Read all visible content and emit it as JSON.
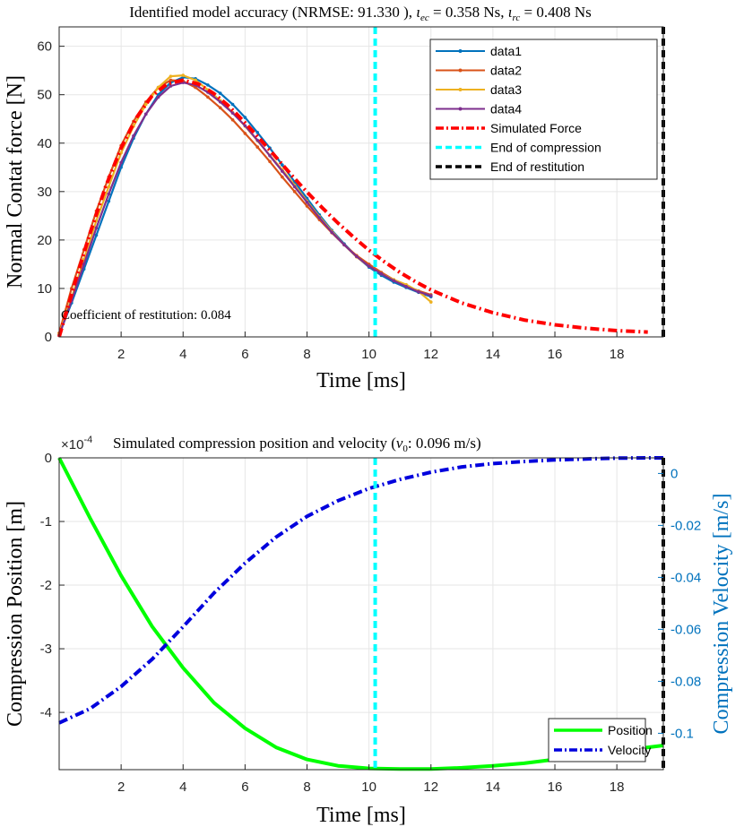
{
  "chart_data": [
    {
      "type": "line",
      "title": "Identified model accuracy (NRMSE: 91.330 ), ιec = 0.358 Ns, ιrc = 0.408 Ns",
      "title_parts": {
        "prefix": "Identified model accuracy (NRMSE: 91.330 ), ",
        "iota": "ι",
        "sub_ec": "ec",
        "eq_ec": " = 0.358 Ns, ",
        "sub_rc": "rc",
        "eq_rc": " = 0.408 Ns"
      },
      "xlabel": "Time [ms]",
      "ylabel": "Normal Contat force [N]",
      "xlim": [
        0,
        19.5
      ],
      "ylim": [
        0,
        64
      ],
      "xticks": [
        2,
        4,
        6,
        8,
        10,
        12,
        14,
        16,
        18
      ],
      "yticks": [
        0,
        10,
        20,
        30,
        40,
        50,
        60
      ],
      "grid": true,
      "legend_position": "top-right",
      "annotation": "Coefficient of restitution: 0.084",
      "series": [
        {
          "name": "data1",
          "color": "#0072BD",
          "style": "solid-dots",
          "x": [
            0,
            0.4,
            0.8,
            1.2,
            1.6,
            2.0,
            2.4,
            2.8,
            3.2,
            3.6,
            4.0,
            4.4,
            4.8,
            5.2,
            5.6,
            6.0,
            6.4,
            6.8,
            7.2,
            7.6,
            8.0,
            8.4,
            8.8,
            9.2,
            9.6,
            10.0,
            10.4,
            10.8,
            11.2,
            11.6,
            12.0
          ],
          "y": [
            0.5,
            7,
            14,
            21,
            28,
            35,
            41,
            46,
            50,
            52.5,
            53.6,
            53.3,
            52,
            50.3,
            48,
            45.3,
            42.2,
            39,
            35.5,
            32,
            28.6,
            25.2,
            22,
            19.2,
            16.6,
            14.4,
            12.7,
            11.3,
            10.2,
            9.2,
            8.3
          ]
        },
        {
          "name": "data2",
          "color": "#D95319",
          "style": "solid-dots",
          "x": [
            0,
            0.4,
            0.8,
            1.2,
            1.6,
            2.0,
            2.4,
            2.8,
            3.2,
            3.6,
            4.0,
            4.4,
            4.8,
            5.2,
            5.6,
            6.0,
            6.4,
            6.8,
            7.2,
            7.6,
            8.0,
            8.4,
            8.8,
            9.2,
            9.6,
            10.0,
            10.4,
            10.8,
            11.2,
            11.6,
            12.0
          ],
          "y": [
            0.8,
            10,
            18,
            26,
            33,
            39.5,
            44.5,
            48.5,
            51.5,
            53,
            52.8,
            51.5,
            49.5,
            47.3,
            44.8,
            42,
            39.2,
            36.2,
            33,
            30,
            27,
            24.2,
            21.5,
            19,
            16.8,
            15,
            13.3,
            11.8,
            10.6,
            9.5,
            8.7
          ]
        },
        {
          "name": "data3",
          "color": "#EDB120",
          "style": "solid-dots",
          "x": [
            0,
            0.4,
            0.8,
            1.2,
            1.6,
            2.0,
            2.4,
            2.8,
            3.2,
            3.6,
            4.0,
            4.4,
            4.8,
            5.2,
            5.6,
            6.0,
            6.4,
            6.8,
            7.2,
            7.6,
            8.0,
            8.4,
            8.8,
            9.2,
            9.6,
            10.0,
            10.4,
            10.8,
            11.2,
            11.6,
            12.0
          ],
          "y": [
            0.6,
            8,
            16,
            24,
            31,
            38,
            43.5,
            48,
            51.5,
            53.8,
            54,
            53,
            51,
            48.8,
            46.3,
            43.5,
            40.5,
            37.5,
            34.5,
            31.3,
            28,
            24.8,
            21.8,
            19,
            16.5,
            14.6,
            13.0,
            11.8,
            10.8,
            9.4,
            7.2
          ]
        },
        {
          "name": "data4",
          "color": "#7E2F8E",
          "style": "solid-dots",
          "x": [
            0,
            0.4,
            0.8,
            1.2,
            1.6,
            2.0,
            2.4,
            2.8,
            3.2,
            3.6,
            4.0,
            4.4,
            4.8,
            5.2,
            5.6,
            6.0,
            6.4,
            6.8,
            7.2,
            7.6,
            8.0,
            8.4,
            8.8,
            9.2,
            9.6,
            10.0,
            10.4,
            10.8,
            11.2,
            11.6,
            12.0
          ],
          "y": [
            0.3,
            7.5,
            15,
            22.5,
            29.5,
            36,
            41.5,
            46,
            49.5,
            51.8,
            52.5,
            52,
            50.5,
            48.5,
            46.2,
            43.6,
            40.6,
            37.4,
            34.2,
            31,
            27.8,
            24.6,
            21.6,
            19,
            16.6,
            14.6,
            13,
            11.6,
            10.4,
            9.3,
            8.5
          ]
        },
        {
          "name": "Simulated Force",
          "color": "#FF0000",
          "style": "dash-dot",
          "x": [
            0,
            0.5,
            1.0,
            1.5,
            2.0,
            2.5,
            3.0,
            3.5,
            4.0,
            4.5,
            5.0,
            5.5,
            6.0,
            6.5,
            7.0,
            7.5,
            8.0,
            8.5,
            9.0,
            9.5,
            10.0,
            10.5,
            11.0,
            11.5,
            12.0,
            13.0,
            14.0,
            15.0,
            16.0,
            17.0,
            18.0,
            19.0
          ],
          "y": [
            0,
            11,
            21.5,
            31,
            39,
            45.3,
            49.8,
            52.3,
            53,
            52.2,
            50.2,
            47.5,
            44.2,
            40.7,
            37.1,
            33.4,
            29.9,
            26.6,
            23.5,
            20.6,
            17.9,
            15.5,
            13.3,
            11.4,
            9.7,
            7.0,
            5.0,
            3.5,
            2.5,
            1.8,
            1.3,
            1.0
          ]
        },
        {
          "name": "End of compression",
          "color": "#00FFFF",
          "style": "dashed-vertical",
          "x": [
            10.2,
            10.2
          ],
          "y": [
            0,
            64
          ]
        },
        {
          "name": "End of restitution",
          "color": "#000000",
          "style": "dashed-vertical",
          "x": [
            19.5,
            19.5
          ],
          "y": [
            0,
            64
          ]
        }
      ]
    },
    {
      "type": "line",
      "title": "Simulated compression position and velocity (v0: 0.096 m/s)",
      "title_parts": {
        "prefix": "Simulated compression position and velocity (",
        "v": "v",
        "sub": "0",
        "suffix": ": 0.096 m/s)"
      },
      "exponent_label": "×10",
      "exponent": "-4",
      "xlabel": "Time [ms]",
      "ylabel": "Compression Position [m]",
      "ylabel_right": "Compression Velocity [m/s]",
      "xlim": [
        0,
        19.5
      ],
      "ylim": [
        -4.9,
        0
      ],
      "ylim_right": [
        -0.114,
        0.006
      ],
      "xticks": [
        2,
        4,
        6,
        8,
        10,
        12,
        14,
        16,
        18
      ],
      "yticks": [
        0,
        -1,
        -2,
        -3,
        -4
      ],
      "ytick_labels": [
        "0",
        "-1",
        "-2",
        "-3",
        "-4"
      ],
      "yticks_right": [
        0,
        -0.02,
        -0.04,
        -0.06,
        -0.08,
        -0.1
      ],
      "ytick_labels_right": [
        "0",
        "-0.02",
        "-0.04",
        "-0.06",
        "-0.08",
        "-0.1"
      ],
      "grid": true,
      "legend_position": "bottom-right",
      "series": [
        {
          "name": "Position",
          "color": "#00FF00",
          "style": "solid",
          "axis": "left",
          "x": [
            0,
            1,
            2,
            3,
            4,
            5,
            6,
            7,
            8,
            9,
            10,
            11,
            12,
            13,
            14,
            15,
            16,
            17,
            18,
            19,
            19.5
          ],
          "y": [
            0,
            -0.95,
            -1.85,
            -2.65,
            -3.3,
            -3.85,
            -4.25,
            -4.55,
            -4.74,
            -4.84,
            -4.88,
            -4.89,
            -4.89,
            -4.87,
            -4.84,
            -4.8,
            -4.74,
            -4.68,
            -4.62,
            -4.55,
            -4.52
          ]
        },
        {
          "name": "Velocity",
          "color": "#0000DD",
          "style": "dash-dot",
          "axis": "right",
          "x": [
            0,
            1,
            2,
            3,
            4,
            5,
            6,
            7,
            8,
            9,
            10,
            11,
            12,
            13,
            14,
            15,
            16,
            17,
            18,
            19,
            19.5
          ],
          "y": [
            -0.096,
            -0.0905,
            -0.082,
            -0.0715,
            -0.059,
            -0.046,
            -0.0345,
            -0.0245,
            -0.0165,
            -0.0105,
            -0.0058,
            -0.0023,
            0.0005,
            0.0025,
            0.0038,
            0.0046,
            0.0052,
            0.0056,
            0.0059,
            0.006,
            0.006
          ]
        },
        {
          "name": "End of compression",
          "color": "#00FFFF",
          "style": "dashed-vertical",
          "x": [
            10.2,
            10.2
          ]
        },
        {
          "name": "End of restitution",
          "color": "#000000",
          "style": "dashed-vertical",
          "x": [
            19.5,
            19.5
          ]
        }
      ]
    }
  ]
}
